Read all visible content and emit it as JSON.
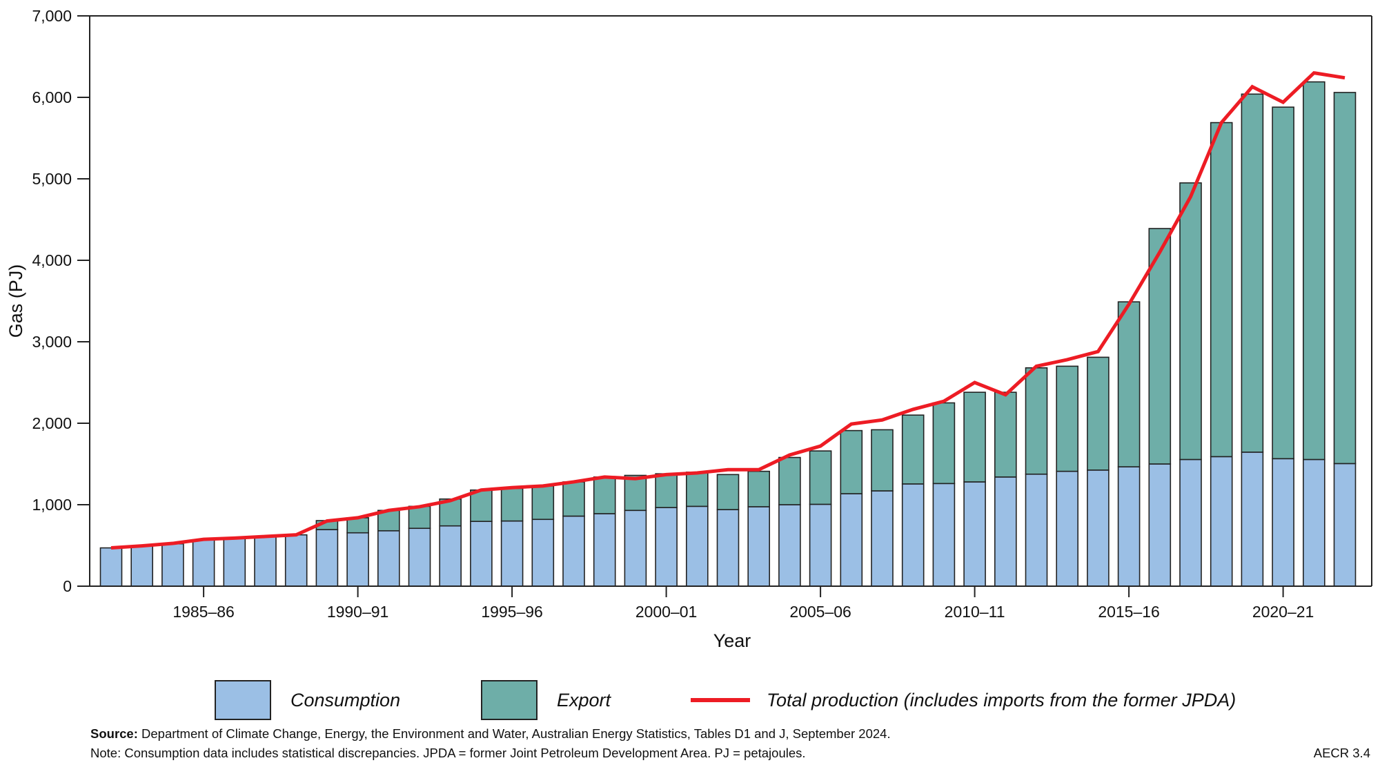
{
  "chart_data": {
    "type": "bar",
    "stacked": true,
    "xlabel": "Year",
    "ylabel": "Gas (PJ)",
    "ylim": [
      0,
      7000
    ],
    "yticks": [
      0,
      1000,
      2000,
      3000,
      4000,
      5000,
      6000,
      7000
    ],
    "ytick_labels": [
      "0",
      "1,000",
      "2,000",
      "3,000",
      "4,000",
      "5,000",
      "6,000",
      "7,000"
    ],
    "grid": false,
    "legend_placement": "bottom",
    "xtick_labels": [
      "1985–86",
      "1990–91",
      "1995–96",
      "2000–01",
      "2005–06",
      "2010–11",
      "2015–16",
      "2020–21"
    ],
    "categories": [
      "1982–83",
      "1983–84",
      "1984–85",
      "1985–86",
      "1986–87",
      "1987–88",
      "1988–89",
      "1989–90",
      "1990–91",
      "1991–92",
      "1992–93",
      "1993–94",
      "1994–95",
      "1995–96",
      "1996–97",
      "1997–98",
      "1998–99",
      "1999–00",
      "2000–01",
      "2001–02",
      "2002–03",
      "2003–04",
      "2004–05",
      "2005–06",
      "2006–07",
      "2007–08",
      "2008–09",
      "2009–10",
      "2010–11",
      "2011–12",
      "2012–13",
      "2013–14",
      "2014–15",
      "2015–16",
      "2016–17",
      "2017–18",
      "2018–19",
      "2019–20",
      "2020–21",
      "2021–22",
      "2022–23"
    ],
    "series": [
      {
        "name": "Consumption",
        "kind": "bar",
        "color": "#9bbfe5",
        "values": [
          470,
          490,
          520,
          570,
          585,
          605,
          630,
          695,
          655,
          680,
          710,
          740,
          795,
          800,
          820,
          860,
          890,
          930,
          965,
          980,
          940,
          975,
          1000,
          1005,
          1135,
          1170,
          1255,
          1260,
          1280,
          1340,
          1375,
          1410,
          1425,
          1465,
          1500,
          1555,
          1590,
          1645,
          1565,
          1555,
          1505
        ]
      },
      {
        "name": "Export",
        "kind": "bar",
        "color": "#6eaea8",
        "values": [
          0,
          0,
          0,
          0,
          0,
          0,
          0,
          110,
          185,
          250,
          270,
          330,
          385,
          400,
          410,
          420,
          450,
          430,
          415,
          420,
          430,
          435,
          580,
          655,
          775,
          750,
          845,
          990,
          1100,
          1040,
          1305,
          1290,
          1385,
          2025,
          2890,
          3395,
          4100,
          4395,
          4315,
          4635,
          4555
        ]
      },
      {
        "name": "Total production (includes imports from the former JPDA)",
        "kind": "line",
        "color": "#ed1c24",
        "values": [
          470,
          495,
          525,
          575,
          590,
          610,
          630,
          800,
          840,
          930,
          975,
          1050,
          1180,
          1210,
          1230,
          1280,
          1340,
          1320,
          1370,
          1390,
          1430,
          1430,
          1610,
          1720,
          1990,
          2040,
          2170,
          2270,
          2500,
          2350,
          2700,
          2780,
          2880,
          3460,
          4100,
          4780,
          5690,
          6130,
          5940,
          6300,
          6240
        ]
      }
    ]
  },
  "legend": {
    "consumption": "Consumption",
    "export": "Export",
    "total": "Total production (includes imports from the former JPDA)"
  },
  "footer": {
    "source_label": "Source:",
    "source_text": " Department of Climate Change, Energy, the Environment and Water, Australian Energy Statistics, Tables D1 and J, September 2024.",
    "note": "Note: Consumption data includes statistical discrepancies. JPDA = former Joint Petroleum Development Area.  PJ = petajoules.",
    "figure_id": "AECR 3.4"
  }
}
